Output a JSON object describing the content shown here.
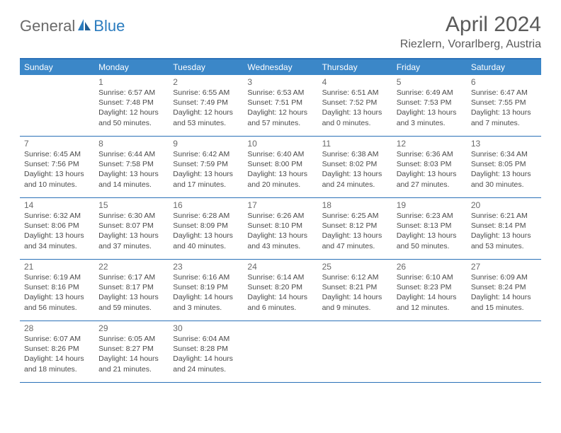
{
  "logo": {
    "part1": "General",
    "part2": "Blue"
  },
  "title": "April 2024",
  "location": "Riezlern, Vorarlberg, Austria",
  "colors": {
    "header_bg": "#3b87c8",
    "border": "#2b71b8",
    "text_muted": "#6a6a6a",
    "text_body": "#4a4a4a",
    "logo_gray": "#6a6a6a",
    "logo_blue": "#2b7cbf",
    "page_bg": "#ffffff"
  },
  "typography": {
    "title_fontsize": 30,
    "subtitle_fontsize": 16,
    "dow_fontsize": 12,
    "daynum_fontsize": 12,
    "body_fontsize": 10.5
  },
  "layout": {
    "columns": 7,
    "cell_min_height": 86
  },
  "dow": [
    "Sunday",
    "Monday",
    "Tuesday",
    "Wednesday",
    "Thursday",
    "Friday",
    "Saturday"
  ],
  "weeks": [
    [
      {
        "num": "",
        "sunrise": "",
        "sunset": "",
        "daylight1": "",
        "daylight2": ""
      },
      {
        "num": "1",
        "sunrise": "Sunrise: 6:57 AM",
        "sunset": "Sunset: 7:48 PM",
        "daylight1": "Daylight: 12 hours",
        "daylight2": "and 50 minutes."
      },
      {
        "num": "2",
        "sunrise": "Sunrise: 6:55 AM",
        "sunset": "Sunset: 7:49 PM",
        "daylight1": "Daylight: 12 hours",
        "daylight2": "and 53 minutes."
      },
      {
        "num": "3",
        "sunrise": "Sunrise: 6:53 AM",
        "sunset": "Sunset: 7:51 PM",
        "daylight1": "Daylight: 12 hours",
        "daylight2": "and 57 minutes."
      },
      {
        "num": "4",
        "sunrise": "Sunrise: 6:51 AM",
        "sunset": "Sunset: 7:52 PM",
        "daylight1": "Daylight: 13 hours",
        "daylight2": "and 0 minutes."
      },
      {
        "num": "5",
        "sunrise": "Sunrise: 6:49 AM",
        "sunset": "Sunset: 7:53 PM",
        "daylight1": "Daylight: 13 hours",
        "daylight2": "and 3 minutes."
      },
      {
        "num": "6",
        "sunrise": "Sunrise: 6:47 AM",
        "sunset": "Sunset: 7:55 PM",
        "daylight1": "Daylight: 13 hours",
        "daylight2": "and 7 minutes."
      }
    ],
    [
      {
        "num": "7",
        "sunrise": "Sunrise: 6:45 AM",
        "sunset": "Sunset: 7:56 PM",
        "daylight1": "Daylight: 13 hours",
        "daylight2": "and 10 minutes."
      },
      {
        "num": "8",
        "sunrise": "Sunrise: 6:44 AM",
        "sunset": "Sunset: 7:58 PM",
        "daylight1": "Daylight: 13 hours",
        "daylight2": "and 14 minutes."
      },
      {
        "num": "9",
        "sunrise": "Sunrise: 6:42 AM",
        "sunset": "Sunset: 7:59 PM",
        "daylight1": "Daylight: 13 hours",
        "daylight2": "and 17 minutes."
      },
      {
        "num": "10",
        "sunrise": "Sunrise: 6:40 AM",
        "sunset": "Sunset: 8:00 PM",
        "daylight1": "Daylight: 13 hours",
        "daylight2": "and 20 minutes."
      },
      {
        "num": "11",
        "sunrise": "Sunrise: 6:38 AM",
        "sunset": "Sunset: 8:02 PM",
        "daylight1": "Daylight: 13 hours",
        "daylight2": "and 24 minutes."
      },
      {
        "num": "12",
        "sunrise": "Sunrise: 6:36 AM",
        "sunset": "Sunset: 8:03 PM",
        "daylight1": "Daylight: 13 hours",
        "daylight2": "and 27 minutes."
      },
      {
        "num": "13",
        "sunrise": "Sunrise: 6:34 AM",
        "sunset": "Sunset: 8:05 PM",
        "daylight1": "Daylight: 13 hours",
        "daylight2": "and 30 minutes."
      }
    ],
    [
      {
        "num": "14",
        "sunrise": "Sunrise: 6:32 AM",
        "sunset": "Sunset: 8:06 PM",
        "daylight1": "Daylight: 13 hours",
        "daylight2": "and 34 minutes."
      },
      {
        "num": "15",
        "sunrise": "Sunrise: 6:30 AM",
        "sunset": "Sunset: 8:07 PM",
        "daylight1": "Daylight: 13 hours",
        "daylight2": "and 37 minutes."
      },
      {
        "num": "16",
        "sunrise": "Sunrise: 6:28 AM",
        "sunset": "Sunset: 8:09 PM",
        "daylight1": "Daylight: 13 hours",
        "daylight2": "and 40 minutes."
      },
      {
        "num": "17",
        "sunrise": "Sunrise: 6:26 AM",
        "sunset": "Sunset: 8:10 PM",
        "daylight1": "Daylight: 13 hours",
        "daylight2": "and 43 minutes."
      },
      {
        "num": "18",
        "sunrise": "Sunrise: 6:25 AM",
        "sunset": "Sunset: 8:12 PM",
        "daylight1": "Daylight: 13 hours",
        "daylight2": "and 47 minutes."
      },
      {
        "num": "19",
        "sunrise": "Sunrise: 6:23 AM",
        "sunset": "Sunset: 8:13 PM",
        "daylight1": "Daylight: 13 hours",
        "daylight2": "and 50 minutes."
      },
      {
        "num": "20",
        "sunrise": "Sunrise: 6:21 AM",
        "sunset": "Sunset: 8:14 PM",
        "daylight1": "Daylight: 13 hours",
        "daylight2": "and 53 minutes."
      }
    ],
    [
      {
        "num": "21",
        "sunrise": "Sunrise: 6:19 AM",
        "sunset": "Sunset: 8:16 PM",
        "daylight1": "Daylight: 13 hours",
        "daylight2": "and 56 minutes."
      },
      {
        "num": "22",
        "sunrise": "Sunrise: 6:17 AM",
        "sunset": "Sunset: 8:17 PM",
        "daylight1": "Daylight: 13 hours",
        "daylight2": "and 59 minutes."
      },
      {
        "num": "23",
        "sunrise": "Sunrise: 6:16 AM",
        "sunset": "Sunset: 8:19 PM",
        "daylight1": "Daylight: 14 hours",
        "daylight2": "and 3 minutes."
      },
      {
        "num": "24",
        "sunrise": "Sunrise: 6:14 AM",
        "sunset": "Sunset: 8:20 PM",
        "daylight1": "Daylight: 14 hours",
        "daylight2": "and 6 minutes."
      },
      {
        "num": "25",
        "sunrise": "Sunrise: 6:12 AM",
        "sunset": "Sunset: 8:21 PM",
        "daylight1": "Daylight: 14 hours",
        "daylight2": "and 9 minutes."
      },
      {
        "num": "26",
        "sunrise": "Sunrise: 6:10 AM",
        "sunset": "Sunset: 8:23 PM",
        "daylight1": "Daylight: 14 hours",
        "daylight2": "and 12 minutes."
      },
      {
        "num": "27",
        "sunrise": "Sunrise: 6:09 AM",
        "sunset": "Sunset: 8:24 PM",
        "daylight1": "Daylight: 14 hours",
        "daylight2": "and 15 minutes."
      }
    ],
    [
      {
        "num": "28",
        "sunrise": "Sunrise: 6:07 AM",
        "sunset": "Sunset: 8:26 PM",
        "daylight1": "Daylight: 14 hours",
        "daylight2": "and 18 minutes."
      },
      {
        "num": "29",
        "sunrise": "Sunrise: 6:05 AM",
        "sunset": "Sunset: 8:27 PM",
        "daylight1": "Daylight: 14 hours",
        "daylight2": "and 21 minutes."
      },
      {
        "num": "30",
        "sunrise": "Sunrise: 6:04 AM",
        "sunset": "Sunset: 8:28 PM",
        "daylight1": "Daylight: 14 hours",
        "daylight2": "and 24 minutes."
      },
      {
        "num": "",
        "sunrise": "",
        "sunset": "",
        "daylight1": "",
        "daylight2": ""
      },
      {
        "num": "",
        "sunrise": "",
        "sunset": "",
        "daylight1": "",
        "daylight2": ""
      },
      {
        "num": "",
        "sunrise": "",
        "sunset": "",
        "daylight1": "",
        "daylight2": ""
      },
      {
        "num": "",
        "sunrise": "",
        "sunset": "",
        "daylight1": "",
        "daylight2": ""
      }
    ]
  ]
}
